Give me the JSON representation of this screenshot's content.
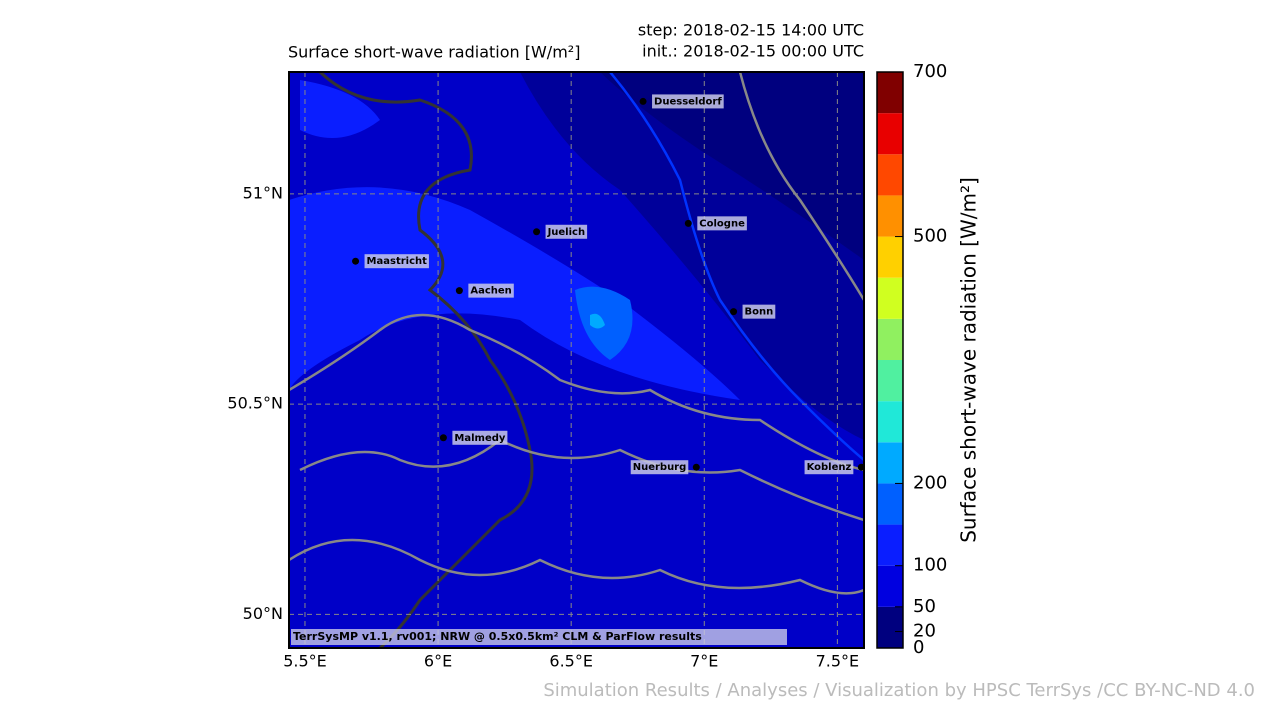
{
  "map": {
    "title": "Surface short-wave radiation [W/m²]",
    "step": "step: 2018-02-15 14:00 UTC",
    "init": "init.: 2018-02-15 00:00 UTC",
    "xlim": [
      5.44,
      7.6
    ],
    "ylim": [
      49.92,
      51.29
    ],
    "xticks": [
      {
        "value": 5.5,
        "label": "5.5°E"
      },
      {
        "value": 6,
        "label": "6°E"
      },
      {
        "value": 6.5,
        "label": "6.5°E"
      },
      {
        "value": 7,
        "label": "7°E"
      },
      {
        "value": 7.5,
        "label": "7.5°E"
      }
    ],
    "yticks": [
      {
        "value": 50,
        "label": "50°N"
      },
      {
        "value": 50.5,
        "label": "50.5°N"
      },
      {
        "value": 51,
        "label": "51°N"
      }
    ],
    "grid": true,
    "cities": [
      {
        "name": "Duesseldorf",
        "lon": 6.77,
        "lat": 51.22,
        "side": "right"
      },
      {
        "name": "Cologne",
        "lon": 6.94,
        "lat": 50.93,
        "side": "right"
      },
      {
        "name": "Juelich",
        "lon": 6.37,
        "lat": 50.91,
        "side": "right"
      },
      {
        "name": "Maastricht",
        "lon": 5.69,
        "lat": 50.84,
        "side": "right"
      },
      {
        "name": "Aachen",
        "lon": 6.08,
        "lat": 50.77,
        "side": "right"
      },
      {
        "name": "Bonn",
        "lon": 7.11,
        "lat": 50.72,
        "side": "right"
      },
      {
        "name": "Malmedy",
        "lon": 6.02,
        "lat": 50.42,
        "side": "right"
      },
      {
        "name": "Nuerburg",
        "lon": 6.97,
        "lat": 50.35,
        "side": "left"
      },
      {
        "name": "Koblenz",
        "lon": 7.59,
        "lat": 50.35,
        "side": "left"
      }
    ],
    "note": "TerrSysMP v1.1, rv001; NRW @ 0.5x0.5km² CLM & ParFlow results",
    "colorbar": {
      "label": "Surface short-wave radiation [W/m²]",
      "lim": [
        0,
        700
      ],
      "ticks": [
        0,
        20,
        50,
        100,
        200,
        500,
        700
      ],
      "colors": [
        "#00007f",
        "#0000e0",
        "#0a1eff",
        "#0060ff",
        "#00aaff",
        "#20e8d8",
        "#50f0a0",
        "#90f060",
        "#d0ff20",
        "#ffd000",
        "#ff9000",
        "#ff4800",
        "#e80000",
        "#800000"
      ]
    }
  },
  "footer": "Simulation Results / Analyses / Visualization by HPSC TerrSys /CC BY-NC-ND 4.0"
}
